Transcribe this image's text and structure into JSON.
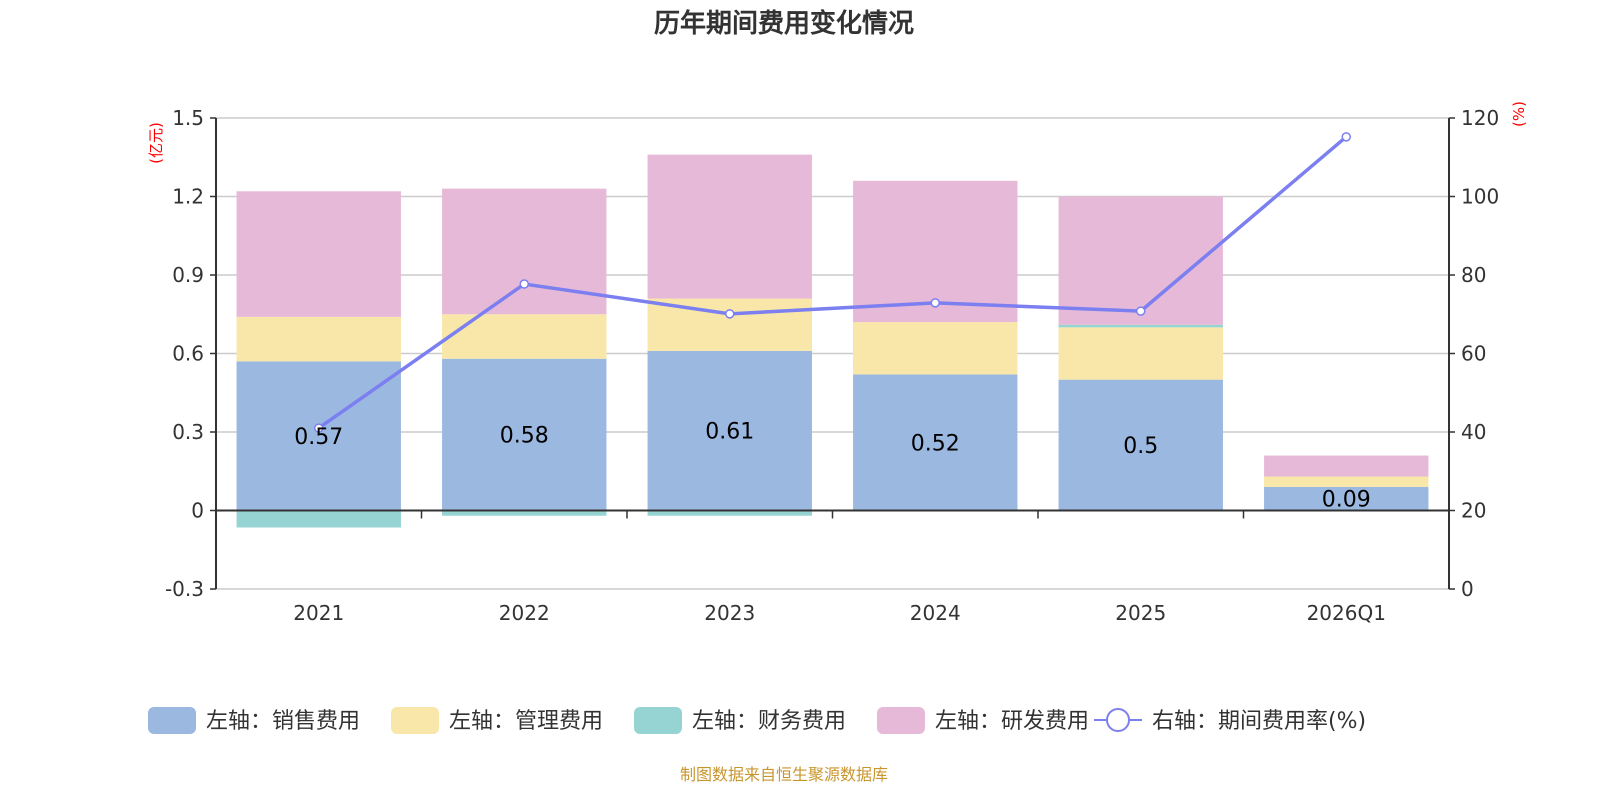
{
  "chart_data": {
    "type": "bar",
    "title": "历年期间费用变化情况",
    "categories": [
      "2021",
      "2022",
      "2023",
      "2024",
      "2025",
      "2026Q1"
    ],
    "stacked": true,
    "left_axis": {
      "unit_label": "(亿元)",
      "ylim": [
        -0.3,
        1.5
      ],
      "ticks": [
        "-0.3",
        "0",
        "0.3",
        "0.6",
        "0.9",
        "1.2",
        "1.5"
      ],
      "tick_values": [
        -0.3,
        0,
        0.3,
        0.6,
        0.9,
        1.2,
        1.5
      ]
    },
    "right_axis": {
      "unit_label": "(%)",
      "ylim": [
        0,
        120
      ],
      "ticks": [
        "0",
        "20",
        "40",
        "60",
        "80",
        "100",
        "120"
      ],
      "tick_values": [
        0,
        20,
        40,
        60,
        80,
        100,
        120
      ]
    },
    "grid": true,
    "legend_placement": "bottom",
    "series": [
      {
        "name": "左轴：销售费用",
        "type": "bar",
        "axis": "left",
        "color": "#9bb8e1",
        "values": [
          0.57,
          0.58,
          0.61,
          0.52,
          0.5,
          0.09
        ],
        "labels": [
          "0.57",
          "0.58",
          "0.61",
          "0.52",
          "0.5",
          "0.09"
        ]
      },
      {
        "name": "左轴：管理费用",
        "type": "bar",
        "axis": "left",
        "color": "#f8e7a9",
        "values": [
          0.17,
          0.17,
          0.2,
          0.2,
          0.2,
          0.04
        ]
      },
      {
        "name": "左轴：财务费用",
        "type": "bar",
        "axis": "left",
        "color": "#96d4d4",
        "values": [
          -0.065,
          -0.02,
          -0.02,
          0.0,
          0.01,
          0.0
        ]
      },
      {
        "name": "左轴：研发费用",
        "type": "bar",
        "axis": "left",
        "color": "#e7b9d8",
        "values": [
          0.48,
          0.48,
          0.55,
          0.54,
          0.49,
          0.08
        ]
      },
      {
        "name": "右轴：期间费用率(%)",
        "type": "line",
        "axis": "right",
        "color": "#7b7ff0",
        "values": [
          41.0,
          77.7,
          70.1,
          72.9,
          70.8,
          115.2
        ]
      }
    ],
    "source": "制图数据来自恒生聚源数据库"
  }
}
